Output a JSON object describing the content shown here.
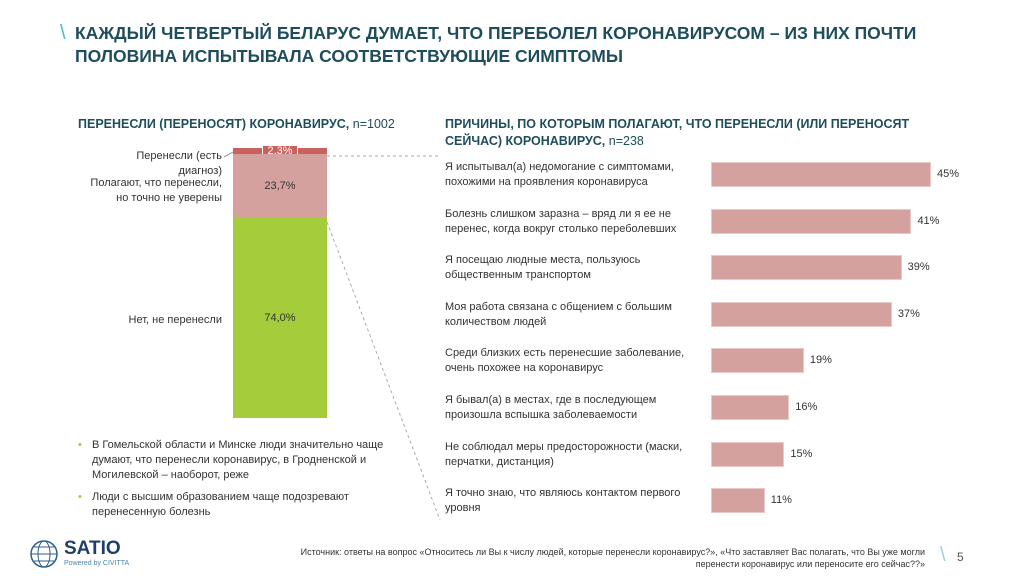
{
  "title": "КАЖДЫЙ ЧЕТВЕРТЫЙ БЕЛАРУС ДУМАЕТ, ЧТО ПЕРЕБОЛЕЛ КОРОНАВИРУСОМ – ИЗ НИХ ПОЧТИ ПОЛОВИНА ИСПЫТЫВАЛА СООТВЕТСТВУЮЩИЕ СИМПТОМЫ",
  "colors": {
    "accent": "#1e4d5c",
    "diagnosed": "#c8625f",
    "suspect": "#d4a19e",
    "no": "#a5cc3a",
    "bars": "#d4a19e"
  },
  "chart_data": [
    {
      "type": "bar",
      "stacked": true,
      "title": "ПЕРЕНЕСЛИ (ПЕРЕНОСЯТ) КОРОНАВИРУС,",
      "n": "n=1002",
      "series": [
        {
          "name": "Перенесли (есть диагноз)",
          "value": 2.3,
          "label": "2,3%"
        },
        {
          "name": "Полагают, что перенесли, но точно не уверены",
          "value": 23.7,
          "label": "23,7%"
        },
        {
          "name": "Нет, не перенесли",
          "value": 74.0,
          "label": "74,0%"
        }
      ]
    },
    {
      "type": "bar",
      "orientation": "horizontal",
      "title": "ПРИЧИНЫ, ПО КОТОРЫМ ПОЛАГАЮТ, ЧТО ПЕРЕНЕСЛИ (ИЛИ ПЕРЕНОСЯТ СЕЙЧАС) КОРОНАВИРУС,",
      "n": "n=238",
      "categories": [
        "Я испытывал(а) недомогание с симптомами, похожими на проявления коронавируса",
        "Болезнь слишком заразна – вряд ли я ее не перенес, когда вокруг столько переболевших",
        "Я посещаю людные места, пользуюсь общественным транспортом",
        "Моя работа связана с общением с большим количеством людей",
        "Среди близких есть перенесшие заболевание, очень похожее на коронавирус",
        "Я бывал(а) в местах, где в последующем произошла вспышка заболеваемости",
        "Не соблюдал меры предосторожности (маски, перчатки, дистанция)",
        "Я точно знаю, что являюсь контактом первого уровня"
      ],
      "values": [
        45,
        41,
        39,
        37,
        19,
        16,
        15,
        11
      ],
      "labels": [
        "45%",
        "41%",
        "39%",
        "37%",
        "19%",
        "16%",
        "15%",
        "11%"
      ]
    }
  ],
  "bullets": [
    "В Гомельской области и Минске люди значительно чаще думают, что перенесли коронавирус, в Гродненской и Могилевской – наоборот, реже",
    "Люди с высшим образованием чаще подозревают перенесенную болезнь"
  ],
  "logo": {
    "name": "SATIO",
    "tagline": "Powered by CIVITTA"
  },
  "source": "Источник: ответы на вопрос «Относитесь ли Вы к числу людей, которые перенесли коронавирус?», «Что заставляет Вас полагать, что Вы уже могли перенести коронавирус или переносите его сейчас??»",
  "page_number": "5"
}
